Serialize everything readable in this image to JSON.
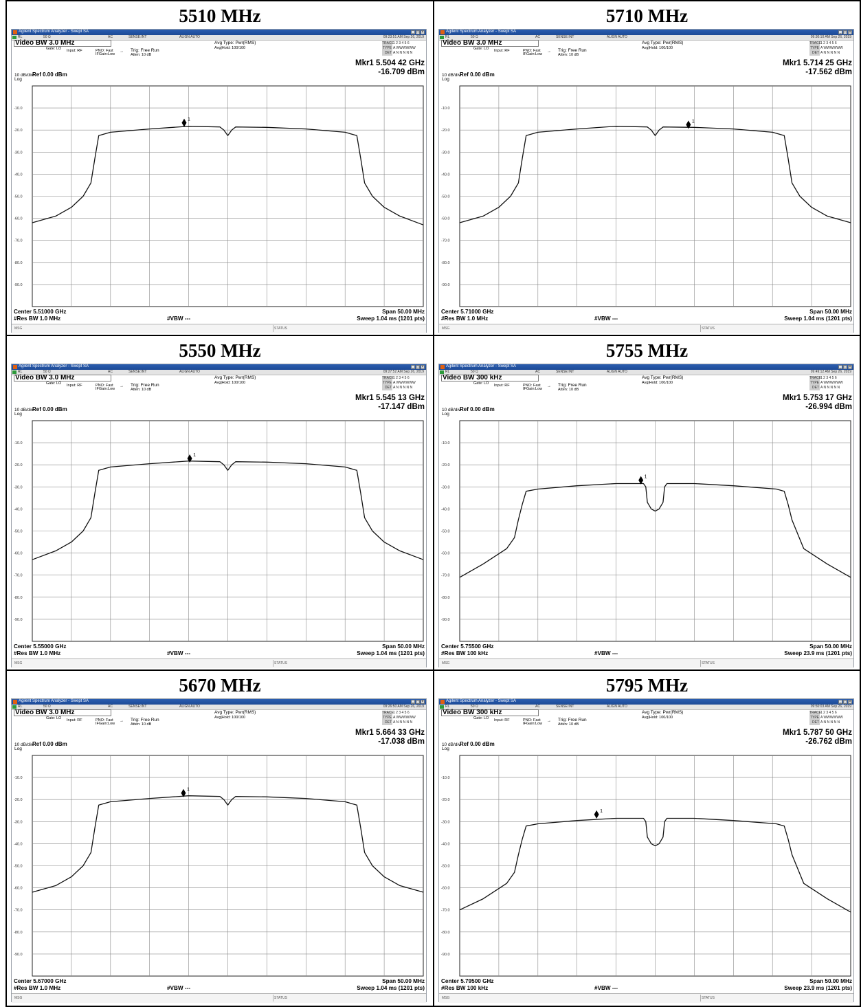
{
  "analyzer_ui": {
    "window_title": "Agilent Spectrum Analyzer - Swept SA",
    "rl": "RL",
    "impedance": "50 Ω",
    "coupling": "AC",
    "sense": "SENSE:INT",
    "align": "ALIGN AUTO",
    "gate": "Gate: LO",
    "input": "Input: RF",
    "pno": "PNO: Fast",
    "ifgain": "IFGain:Low",
    "trig": "Trig: Free Run",
    "atten": "Atten: 10 dB",
    "avg_type": "Avg Type: Pwr(RMS)",
    "avg_hold": "Avg|Hold: 100/100",
    "trace_label": "TRACE",
    "trace_value": "1 2 3 4 5 6",
    "type_label": "TYPE",
    "type_value": "A WWWWWW",
    "det_label": "DET",
    "det_value": "A N N N N N",
    "scale": "10 dB/div",
    "ref": "Ref 0.00 dBm",
    "log": "Log",
    "vbw_hash": "#VBW ---",
    "span": "Span 50.00 MHz",
    "msg": "MSG",
    "status": "STATUS",
    "marker_number": "1",
    "y_tick_labels": [
      "-10.0",
      "-20.0",
      "-30.0",
      "-40.0",
      "-50.0",
      "-60.0",
      "-70.0",
      "-80.0",
      "-90.0"
    ]
  },
  "cells": [
    {
      "title": "5510 MHz",
      "video_bw": "Video BW  3.0 MHz",
      "timestamp": "09:23:51 AM Sep 26, 2019",
      "marker_freq": "Mkr1 5.504 42 GHz",
      "marker_amp": "-16.709 dBm",
      "center": "Center 5.51000 GHz",
      "res_bw": "#Res BW 1.0 MHz",
      "sweep": "Sweep  1.04 ms (1201 pts)"
    },
    {
      "title": "5710 MHz",
      "video_bw": "Video BW  3.0 MHz",
      "timestamp": "09:30:10 AM Sep 26, 2019",
      "marker_freq": "Mkr1 5.714 25 GHz",
      "marker_amp": "-17.562 dBm",
      "center": "Center 5.71000 GHz",
      "res_bw": "#Res BW 1.0 MHz",
      "sweep": "Sweep  1.04 ms (1201 pts)"
    },
    {
      "title": "5550 MHz",
      "video_bw": "Video BW  3.0 MHz",
      "timestamp": "09:27:52 AM Sep 26, 2019",
      "marker_freq": "Mkr1 5.545 13 GHz",
      "marker_amp": "-17.147 dBm",
      "center": "Center 5.55000 GHz",
      "res_bw": "#Res BW 1.0 MHz",
      "sweep": "Sweep  1.04 ms (1201 pts)"
    },
    {
      "title": "5755 MHz",
      "video_bw": "Video BW  300 kHz",
      "timestamp": "09:49:12 AM Sep 26, 2019",
      "marker_freq": "Mkr1 5.753 17 GHz",
      "marker_amp": "-26.994 dBm",
      "center": "Center 5.75500 GHz",
      "res_bw": "#Res BW 100 kHz",
      "sweep": "Sweep  23.9 ms (1201 pts)"
    },
    {
      "title": "5670 MHz",
      "video_bw": "Video BW  3.0 MHz",
      "timestamp": "09:26:50 AM Sep 26, 2019",
      "marker_freq": "Mkr1 5.664 33 GHz",
      "marker_amp": "-17.038 dBm",
      "center": "Center 5.67000 GHz",
      "res_bw": "#Res BW 1.0 MHz",
      "sweep": "Sweep  1.04 ms (1201 pts)"
    },
    {
      "title": "5795 MHz",
      "video_bw": "Video BW  300 kHz",
      "timestamp": "09:50:03 AM Sep 26, 2019",
      "marker_freq": "Mkr1 5.787 50 GHz",
      "marker_amp": "-26.762 dBm",
      "center": "Center 5.79500 GHz",
      "res_bw": "#Res BW 100 kHz",
      "sweep": "Sweep  23.9 ms (1201 pts)"
    }
  ],
  "chart_data": [
    {
      "type": "line",
      "center_ghz": 5.51,
      "span_mhz": 50,
      "xlim": [
        5.485,
        5.535
      ],
      "ylim": [
        -100,
        0
      ],
      "grid": true,
      "x": [
        5.485,
        5.488,
        5.49,
        5.4915,
        5.4925,
        5.493,
        5.4935,
        5.495,
        5.5,
        5.505,
        5.509,
        5.5095,
        5.51,
        5.5105,
        5.511,
        5.515,
        5.52,
        5.525,
        5.5265,
        5.527,
        5.5275,
        5.5285,
        5.53,
        5.532,
        5.535
      ],
      "y": [
        -62,
        -59,
        -55,
        -50,
        -44,
        -33,
        -22.5,
        -21,
        -19.5,
        -18.3,
        -18.6,
        -20,
        -22.5,
        -20,
        -18.6,
        -18.8,
        -19.5,
        -21,
        -22.5,
        -33,
        -44,
        -50,
        -55,
        -59,
        -63
      ],
      "marker": {
        "x": 5.50442,
        "y": -16.709
      }
    },
    {
      "type": "line",
      "center_ghz": 5.71,
      "span_mhz": 50,
      "xlim": [
        5.685,
        5.735
      ],
      "ylim": [
        -100,
        0
      ],
      "grid": true,
      "x": [
        5.685,
        5.688,
        5.69,
        5.6915,
        5.6925,
        5.693,
        5.6935,
        5.695,
        5.7,
        5.705,
        5.709,
        5.7095,
        5.71,
        5.7105,
        5.711,
        5.715,
        5.72,
        5.725,
        5.7265,
        5.727,
        5.7275,
        5.7285,
        5.73,
        5.732,
        5.735
      ],
      "y": [
        -62,
        -59,
        -55,
        -50,
        -44,
        -33,
        -22.5,
        -21,
        -19.5,
        -18.3,
        -18.6,
        -20,
        -22.5,
        -20,
        -18.6,
        -18.8,
        -19.5,
        -21,
        -22.5,
        -33,
        -44,
        -50,
        -55,
        -59,
        -62
      ],
      "marker": {
        "x": 5.71425,
        "y": -17.562
      }
    },
    {
      "type": "line",
      "center_ghz": 5.55,
      "span_mhz": 50,
      "xlim": [
        5.525,
        5.575
      ],
      "ylim": [
        -100,
        0
      ],
      "grid": true,
      "x": [
        5.525,
        5.528,
        5.53,
        5.5315,
        5.5325,
        5.533,
        5.5335,
        5.535,
        5.54,
        5.545,
        5.549,
        5.5495,
        5.55,
        5.5505,
        5.551,
        5.555,
        5.56,
        5.565,
        5.5665,
        5.567,
        5.5675,
        5.5685,
        5.57,
        5.572,
        5.575
      ],
      "y": [
        -63,
        -59,
        -55,
        -50,
        -44,
        -33,
        -22.5,
        -21,
        -19.5,
        -18.3,
        -18.6,
        -20,
        -22.5,
        -20,
        -18.6,
        -18.8,
        -19.5,
        -21,
        -22.5,
        -33,
        -44,
        -50,
        -55,
        -59,
        -63
      ],
      "marker": {
        "x": 5.54513,
        "y": -17.147
      }
    },
    {
      "type": "line",
      "center_ghz": 5.755,
      "span_mhz": 50,
      "xlim": [
        5.73,
        5.78
      ],
      "ylim": [
        -100,
        0
      ],
      "grid": true,
      "x": [
        5.73,
        5.733,
        5.736,
        5.737,
        5.7375,
        5.738,
        5.7385,
        5.74,
        5.745,
        5.75,
        5.7535,
        5.7538,
        5.754,
        5.7545,
        5.755,
        5.7555,
        5.756,
        5.7562,
        5.7565,
        5.76,
        5.765,
        5.7705,
        5.7715,
        5.772,
        5.7725,
        5.774,
        5.777,
        5.78
      ],
      "y": [
        -71,
        -65,
        -58,
        -53,
        -45,
        -38,
        -32,
        -31,
        -29.5,
        -28.5,
        -28.5,
        -30,
        -37,
        -40,
        -41,
        -40,
        -37,
        -30,
        -28.5,
        -28.5,
        -29.5,
        -31,
        -32,
        -38,
        -45,
        -58,
        -65,
        -71
      ],
      "marker": {
        "x": 5.75317,
        "y": -26.994
      }
    },
    {
      "type": "line",
      "center_ghz": 5.67,
      "span_mhz": 50,
      "xlim": [
        5.645,
        5.695
      ],
      "ylim": [
        -100,
        0
      ],
      "grid": true,
      "x": [
        5.645,
        5.648,
        5.65,
        5.6515,
        5.6525,
        5.653,
        5.6535,
        5.655,
        5.66,
        5.665,
        5.669,
        5.6695,
        5.67,
        5.6705,
        5.671,
        5.675,
        5.68,
        5.685,
        5.6865,
        5.687,
        5.6875,
        5.6885,
        5.69,
        5.692,
        5.695
      ],
      "y": [
        -62,
        -59,
        -55,
        -50,
        -44,
        -33,
        -22.5,
        -21,
        -19.5,
        -18.3,
        -18.6,
        -20,
        -22.5,
        -20,
        -18.6,
        -18.8,
        -19.5,
        -21,
        -22.5,
        -33,
        -44,
        -50,
        -55,
        -59,
        -62
      ],
      "marker": {
        "x": 5.66433,
        "y": -17.038
      }
    },
    {
      "type": "line",
      "center_ghz": 5.795,
      "span_mhz": 50,
      "xlim": [
        5.77,
        5.82
      ],
      "ylim": [
        -100,
        0
      ],
      "grid": true,
      "x": [
        5.77,
        5.773,
        5.776,
        5.777,
        5.7775,
        5.778,
        5.7785,
        5.78,
        5.785,
        5.79,
        5.7935,
        5.7938,
        5.794,
        5.7945,
        5.795,
        5.7955,
        5.796,
        5.7962,
        5.7965,
        5.8,
        5.805,
        5.8105,
        5.8115,
        5.812,
        5.8125,
        5.814,
        5.817,
        5.82
      ],
      "y": [
        -70,
        -65,
        -58,
        -53,
        -45,
        -38,
        -32,
        -31,
        -29.5,
        -28.5,
        -28.5,
        -30,
        -37,
        -40,
        -41,
        -40,
        -37,
        -30,
        -28.5,
        -28.5,
        -29.5,
        -31,
        -32,
        -38,
        -45,
        -58,
        -65,
        -71
      ],
      "marker": {
        "x": 5.7875,
        "y": -26.762
      }
    }
  ]
}
